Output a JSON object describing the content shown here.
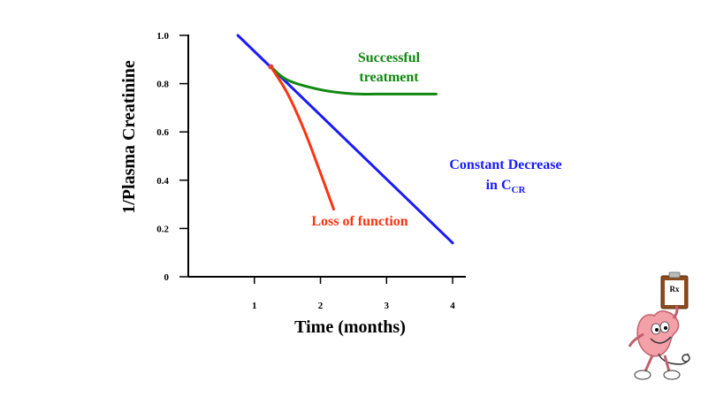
{
  "chart_data": {
    "type": "line",
    "title": "",
    "xlabel": "Time (months)",
    "ylabel": "1/Plasma Creatinine",
    "xlim": [
      0,
      4.2
    ],
    "ylim": [
      0,
      1.0
    ],
    "x_ticks": [
      1,
      2,
      3,
      4
    ],
    "y_ticks": [
      {
        "value": 0,
        "label": "0"
      },
      {
        "value": 0.2,
        "label": "0.2"
      },
      {
        "value": 0.4,
        "label": "0.4"
      },
      {
        "value": 0.6,
        "label": "0.6"
      },
      {
        "value": 0.8,
        "label": "0.8"
      },
      {
        "value": 1.0,
        "label": "1.0"
      }
    ],
    "grid": false,
    "series": [
      {
        "name": "Constant Decrease in CCR",
        "color": "#1a1aff",
        "x": [
          0.75,
          4.0
        ],
        "y": [
          1.0,
          0.14
        ]
      },
      {
        "name": "Successful treatment",
        "color": "#118811",
        "x": [
          1.25,
          1.5,
          2.0,
          2.5,
          3.0,
          3.5,
          3.75
        ],
        "y": [
          0.87,
          0.815,
          0.775,
          0.758,
          0.757,
          0.757,
          0.757
        ]
      },
      {
        "name": "Loss of function",
        "color": "#ff3311",
        "x": [
          1.25,
          1.5,
          1.75,
          2.0,
          2.2
        ],
        "y": [
          0.87,
          0.76,
          0.61,
          0.43,
          0.28
        ]
      }
    ],
    "annotations": [
      {
        "name": "successful",
        "lines": [
          "Successful",
          "treatment"
        ],
        "color": "#118811"
      },
      {
        "name": "constant",
        "text": "Constant Decrease",
        "text2_main": "in C",
        "text2_sub": "CR",
        "color": "#1a1aff"
      },
      {
        "name": "loss",
        "text": "Loss of function",
        "color": "#ff3311"
      }
    ]
  },
  "mascot": {
    "clipboard_text": "Rx"
  }
}
